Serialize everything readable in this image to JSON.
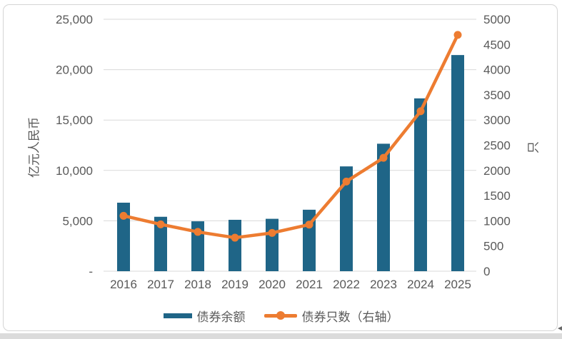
{
  "window": {
    "background": "#FFFFFF",
    "frame_border_color": "#D5D5D5",
    "bottom_strip_color": "#DBDBDB",
    "scroll_artifact_glyph": "◄"
  },
  "chart_data": {
    "type": "bar",
    "subtype": "bar+line combo, dual axis",
    "title": "",
    "categories": [
      "2016",
      "2017",
      "2018",
      "2019",
      "2020",
      "2021",
      "2022",
      "2023",
      "2024",
      "2025"
    ],
    "series": [
      {
        "name": "债券余额",
        "type": "bar",
        "axis": "left",
        "color": "#1F6587",
        "values": [
          6800,
          5400,
          4950,
          5100,
          5200,
          6100,
          10400,
          12650,
          17150,
          21450
        ]
      },
      {
        "name": "债券只数（右轴）",
        "type": "line",
        "axis": "right",
        "color": "#ED7C31",
        "values": [
          1100,
          930,
          780,
          665,
          760,
          925,
          1780,
          2250,
          3175,
          4690
        ]
      }
    ],
    "left_axis": {
      "title": "亿元人民币",
      "min": 0,
      "max": 25000,
      "step": 5000,
      "tick_labels": [
        "-",
        "5,000",
        "10,000",
        "15,000",
        "20,000",
        "25,000"
      ]
    },
    "right_axis": {
      "title": "只",
      "min": 0,
      "max": 5000,
      "step": 500
    },
    "grid": true,
    "grid_color": "#D9D9D9",
    "text_color": "#595959",
    "legend_position": "bottom",
    "legend": [
      {
        "label": "债券余额",
        "marker": "bar-swatch",
        "color": "#1F6587"
      },
      {
        "label": "债券只数（右轴）",
        "marker": "line-dot-swatch",
        "color": "#ED7C31"
      }
    ]
  }
}
